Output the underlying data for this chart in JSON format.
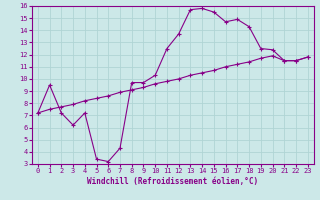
{
  "xlabel": "Windchill (Refroidissement éolien,°C)",
  "xlim": [
    -0.5,
    23.5
  ],
  "ylim": [
    3,
    16
  ],
  "xticks": [
    0,
    1,
    2,
    3,
    4,
    5,
    6,
    7,
    8,
    9,
    10,
    11,
    12,
    13,
    14,
    15,
    16,
    17,
    18,
    19,
    20,
    21,
    22,
    23
  ],
  "yticks": [
    3,
    4,
    5,
    6,
    7,
    8,
    9,
    10,
    11,
    12,
    13,
    14,
    15,
    16
  ],
  "bg_color": "#cce8e8",
  "grid_color": "#b0d4d4",
  "line_color": "#880088",
  "curve1_x": [
    0,
    1,
    2,
    3,
    4,
    5,
    6,
    7,
    8,
    9,
    10,
    11,
    12,
    13,
    14,
    15,
    16,
    17,
    18,
    19,
    20,
    21,
    22,
    23
  ],
  "curve1_y": [
    7.2,
    9.5,
    7.2,
    6.2,
    7.2,
    3.4,
    3.2,
    4.3,
    9.7,
    9.7,
    10.3,
    12.5,
    13.7,
    15.7,
    15.8,
    15.5,
    14.7,
    14.9,
    14.3,
    12.5,
    12.4,
    11.5,
    11.5,
    11.8
  ],
  "curve2_x": [
    0,
    1,
    2,
    3,
    4,
    5,
    6,
    7,
    8,
    9,
    10,
    11,
    12,
    13,
    14,
    15,
    16,
    17,
    18,
    19,
    20,
    21,
    22,
    23
  ],
  "curve2_y": [
    7.2,
    7.5,
    7.7,
    7.9,
    8.2,
    8.4,
    8.6,
    8.9,
    9.1,
    9.3,
    9.6,
    9.8,
    10.0,
    10.3,
    10.5,
    10.7,
    11.0,
    11.2,
    11.4,
    11.7,
    11.9,
    11.5,
    11.5,
    11.8
  ],
  "tick_fontsize": 5,
  "xlabel_fontsize": 5.5
}
